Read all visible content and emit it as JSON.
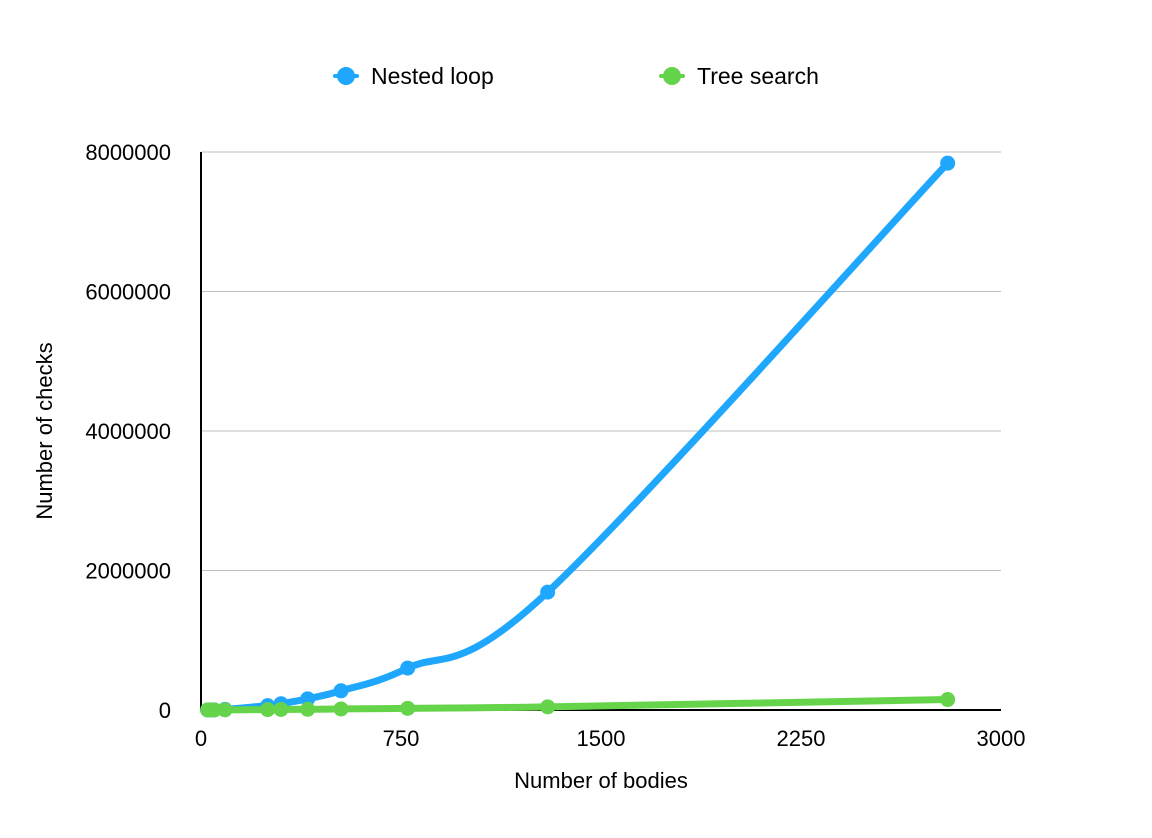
{
  "chart_data": {
    "type": "line",
    "title": "",
    "xlabel": "Number of bodies",
    "ylabel": "Number of checks",
    "xlim": [
      0,
      3000
    ],
    "ylim": [
      0,
      8000000
    ],
    "x_ticks": [
      0,
      750,
      1500,
      2250,
      3000
    ],
    "x_tick_labels": [
      "0",
      "750",
      "1500",
      "2250",
      "3000"
    ],
    "y_ticks": [
      0,
      2000000,
      4000000,
      6000000,
      8000000
    ],
    "y_tick_labels": [
      "0",
      "2000000",
      "4000000",
      "6000000",
      "8000000"
    ],
    "grid": "horizontal",
    "legend": "top-center",
    "smooth": true,
    "series": [
      {
        "name": "Nested loop",
        "color": "#1ea7fd",
        "points": [
          [
            25,
            625
          ],
          [
            35,
            1225
          ],
          [
            50,
            2500
          ],
          [
            90,
            8100
          ],
          [
            250,
            62500
          ],
          [
            300,
            90000
          ],
          [
            400,
            160000
          ],
          [
            525,
            275625
          ],
          [
            775,
            600625
          ],
          [
            1300,
            1690000
          ],
          [
            2800,
            7840000
          ]
        ]
      },
      {
        "name": "Tree search",
        "color": "#66d44a",
        "points": [
          [
            25,
            300
          ],
          [
            35,
            500
          ],
          [
            50,
            800
          ],
          [
            90,
            1800
          ],
          [
            250,
            6000
          ],
          [
            300,
            7500
          ],
          [
            400,
            10500
          ],
          [
            525,
            15000
          ],
          [
            775,
            24000
          ],
          [
            1300,
            45000
          ],
          [
            2800,
            150000
          ]
        ]
      }
    ]
  }
}
